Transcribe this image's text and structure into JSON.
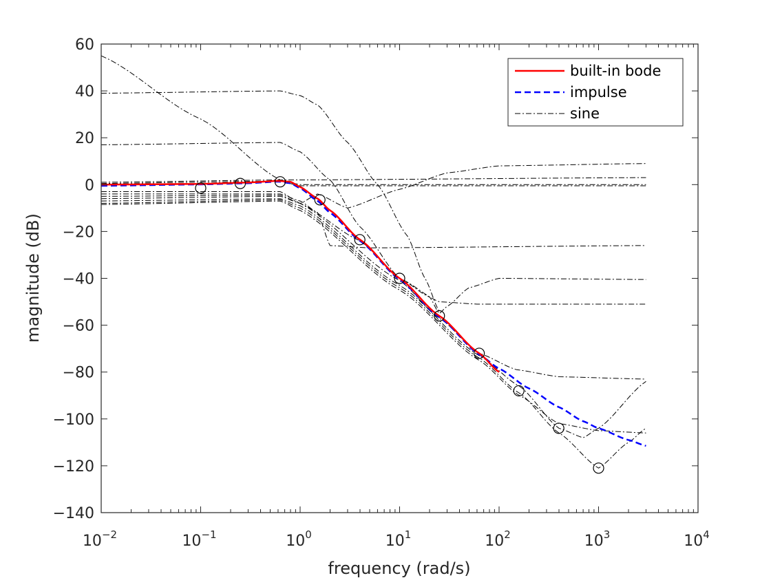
{
  "chart_data": {
    "type": "line",
    "xscale": "log",
    "xlim": [
      0.01,
      10000
    ],
    "ylim": [
      -140,
      60
    ],
    "xlabel": "frequency (rad/s)",
    "ylabel": "magnitude (dB)",
    "grid": false,
    "legend_position": "top-right",
    "xticks": [
      {
        "value": 0.01,
        "base": "10",
        "exp": "−2"
      },
      {
        "value": 0.1,
        "base": "10",
        "exp": "−1"
      },
      {
        "value": 1,
        "base": "10",
        "exp": "0"
      },
      {
        "value": 10,
        "base": "10",
        "exp": "1"
      },
      {
        "value": 100,
        "base": "10",
        "exp": "2"
      },
      {
        "value": 1000,
        "base": "10",
        "exp": "3"
      },
      {
        "value": 10000,
        "base": "10",
        "exp": "4"
      }
    ],
    "yticks": [
      {
        "value": 60,
        "label": "60"
      },
      {
        "value": 40,
        "label": "40"
      },
      {
        "value": 20,
        "label": "20"
      },
      {
        "value": 0,
        "label": "0"
      },
      {
        "value": -20,
        "label": "−20"
      },
      {
        "value": -40,
        "label": "−40"
      },
      {
        "value": -60,
        "label": "−60"
      },
      {
        "value": -80,
        "label": "−80"
      },
      {
        "value": -100,
        "label": "−100"
      },
      {
        "value": -120,
        "label": "−120"
      },
      {
        "value": -140,
        "label": "−140"
      }
    ],
    "legend": [
      {
        "label": "built-in bode",
        "color": "#ff0000",
        "style": "solid"
      },
      {
        "label": "impulse",
        "color": "#0000ff",
        "style": "dashed"
      },
      {
        "label": "sine",
        "color": "#000000",
        "style": "dashdot"
      }
    ],
    "series": [
      {
        "name": "built-in bode",
        "color": "#ff0000",
        "style": "solid",
        "points": [
          [
            0.01,
            0
          ],
          [
            0.1,
            0.3
          ],
          [
            0.3,
            0.9
          ],
          [
            0.6,
            1.6
          ],
          [
            0.8,
            1.2
          ],
          [
            1,
            -1
          ],
          [
            1.5,
            -6
          ],
          [
            2,
            -11
          ],
          [
            4,
            -23.5
          ],
          [
            10,
            -40
          ],
          [
            25,
            -56
          ],
          [
            63,
            -72
          ],
          [
            100,
            -80
          ]
        ]
      },
      {
        "name": "impulse",
        "color": "#0000ff",
        "style": "dashed",
        "points": [
          [
            0.01,
            -0.5
          ],
          [
            0.1,
            0.1
          ],
          [
            0.3,
            0.6
          ],
          [
            0.6,
            1.3
          ],
          [
            0.8,
            0.6
          ],
          [
            1,
            -1.5
          ],
          [
            1.5,
            -7
          ],
          [
            2,
            -12
          ],
          [
            4,
            -24
          ],
          [
            10,
            -40.5
          ],
          [
            25,
            -56.5
          ],
          [
            63,
            -72.5
          ],
          [
            100,
            -78.5
          ],
          [
            200,
            -87
          ],
          [
            400,
            -95
          ],
          [
            700,
            -101
          ],
          [
            1000,
            -104
          ],
          [
            2000,
            -109
          ],
          [
            3000,
            -111.5
          ]
        ]
      },
      {
        "name": "sine",
        "color": "#000000",
        "style": "dashdot",
        "curves": [
          [
            [
              0.01,
              55
            ],
            [
              0.1,
              28
            ],
            [
              0.63,
              2
            ],
            [
              1,
              0
            ],
            [
              3000,
              0
            ]
          ],
          [
            [
              0.01,
              39
            ],
            [
              0.63,
              40
            ],
            [
              1,
              38
            ],
            [
              1.5,
              34
            ],
            [
              3,
              18
            ],
            [
              6,
              0
            ],
            [
              12,
              -22
            ],
            [
              18,
              -40
            ],
            [
              25,
              -54
            ]
          ],
          [
            [
              0.01,
              17
            ],
            [
              0.63,
              18
            ],
            [
              1,
              14
            ],
            [
              2,
              2
            ],
            [
              4,
              -18
            ],
            [
              10,
              -40
            ],
            [
              20,
              -48
            ],
            [
              25,
              -55
            ],
            [
              30,
              -52
            ],
            [
              50,
              -44
            ],
            [
              100,
              -40
            ],
            [
              3000,
              -40.5
            ]
          ],
          [
            [
              0.01,
              1
            ],
            [
              0.63,
              2
            ],
            [
              1,
              2
            ],
            [
              3000,
              3
            ]
          ],
          [
            [
              0.01,
              0.5
            ],
            [
              0.63,
              1.5
            ],
            [
              1,
              -0.5
            ],
            [
              3000,
              -0.5
            ]
          ],
          [
            [
              0.01,
              -3
            ],
            [
              0.63,
              -3
            ],
            [
              1,
              -8
            ],
            [
              1.5,
              -4
            ],
            [
              3,
              -10
            ],
            [
              10,
              -2
            ],
            [
              30,
              5
            ],
            [
              100,
              8
            ],
            [
              3000,
              9
            ]
          ],
          [
            [
              0.01,
              -4
            ],
            [
              0.63,
              -4
            ],
            [
              1,
              -7
            ],
            [
              1.5,
              -12
            ],
            [
              2,
              -26
            ],
            [
              5,
              -27
            ],
            [
              3000,
              -26
            ]
          ],
          [
            [
              0.01,
              -5
            ],
            [
              0.63,
              -4.5
            ],
            [
              1,
              -8
            ],
            [
              4,
              -24
            ],
            [
              10,
              -40
            ],
            [
              25,
              -50
            ],
            [
              60,
              -51
            ],
            [
              3000,
              -51
            ]
          ],
          [
            [
              0.01,
              -6
            ],
            [
              0.63,
              -5
            ],
            [
              1,
              -8
            ],
            [
              10,
              -41
            ],
            [
              25,
              -57
            ],
            [
              63,
              -72
            ],
            [
              150,
              -79
            ],
            [
              400,
              -82
            ],
            [
              3000,
              -83
            ]
          ],
          [
            [
              0.01,
              -7
            ],
            [
              0.63,
              -6
            ],
            [
              1,
              -9
            ],
            [
              10,
              -43
            ],
            [
              63,
              -73
            ],
            [
              160,
              -86
            ],
            [
              400,
              -104
            ],
            [
              700,
              -108
            ],
            [
              1000,
              -104
            ],
            [
              3000,
              -84
            ]
          ],
          [
            [
              0.01,
              -8
            ],
            [
              0.63,
              -6.5
            ],
            [
              1,
              -10
            ],
            [
              10,
              -44
            ],
            [
              63,
              -74
            ],
            [
              160,
              -89
            ],
            [
              400,
              -106
            ],
            [
              1000,
              -121
            ],
            [
              2000,
              -110
            ],
            [
              3000,
              -104
            ]
          ],
          [
            [
              0.01,
              -8.5
            ],
            [
              0.63,
              -7
            ],
            [
              1,
              -11
            ],
            [
              10,
              -45
            ],
            [
              63,
              -75
            ],
            [
              160,
              -90
            ],
            [
              400,
              -102
            ],
            [
              1000,
              -105
            ],
            [
              3000,
              -106
            ]
          ]
        ]
      }
    ],
    "markers": [
      [
        0.1,
        -1.5
      ],
      [
        0.25,
        0.5
      ],
      [
        0.63,
        1.2
      ],
      [
        1.58,
        -6.5
      ],
      [
        3.98,
        -23.5
      ],
      [
        10,
        -40
      ],
      [
        25.1,
        -56
      ],
      [
        63.1,
        -72
      ],
      [
        158,
        -88
      ],
      [
        398,
        -104
      ],
      [
        1000,
        -121
      ]
    ]
  }
}
